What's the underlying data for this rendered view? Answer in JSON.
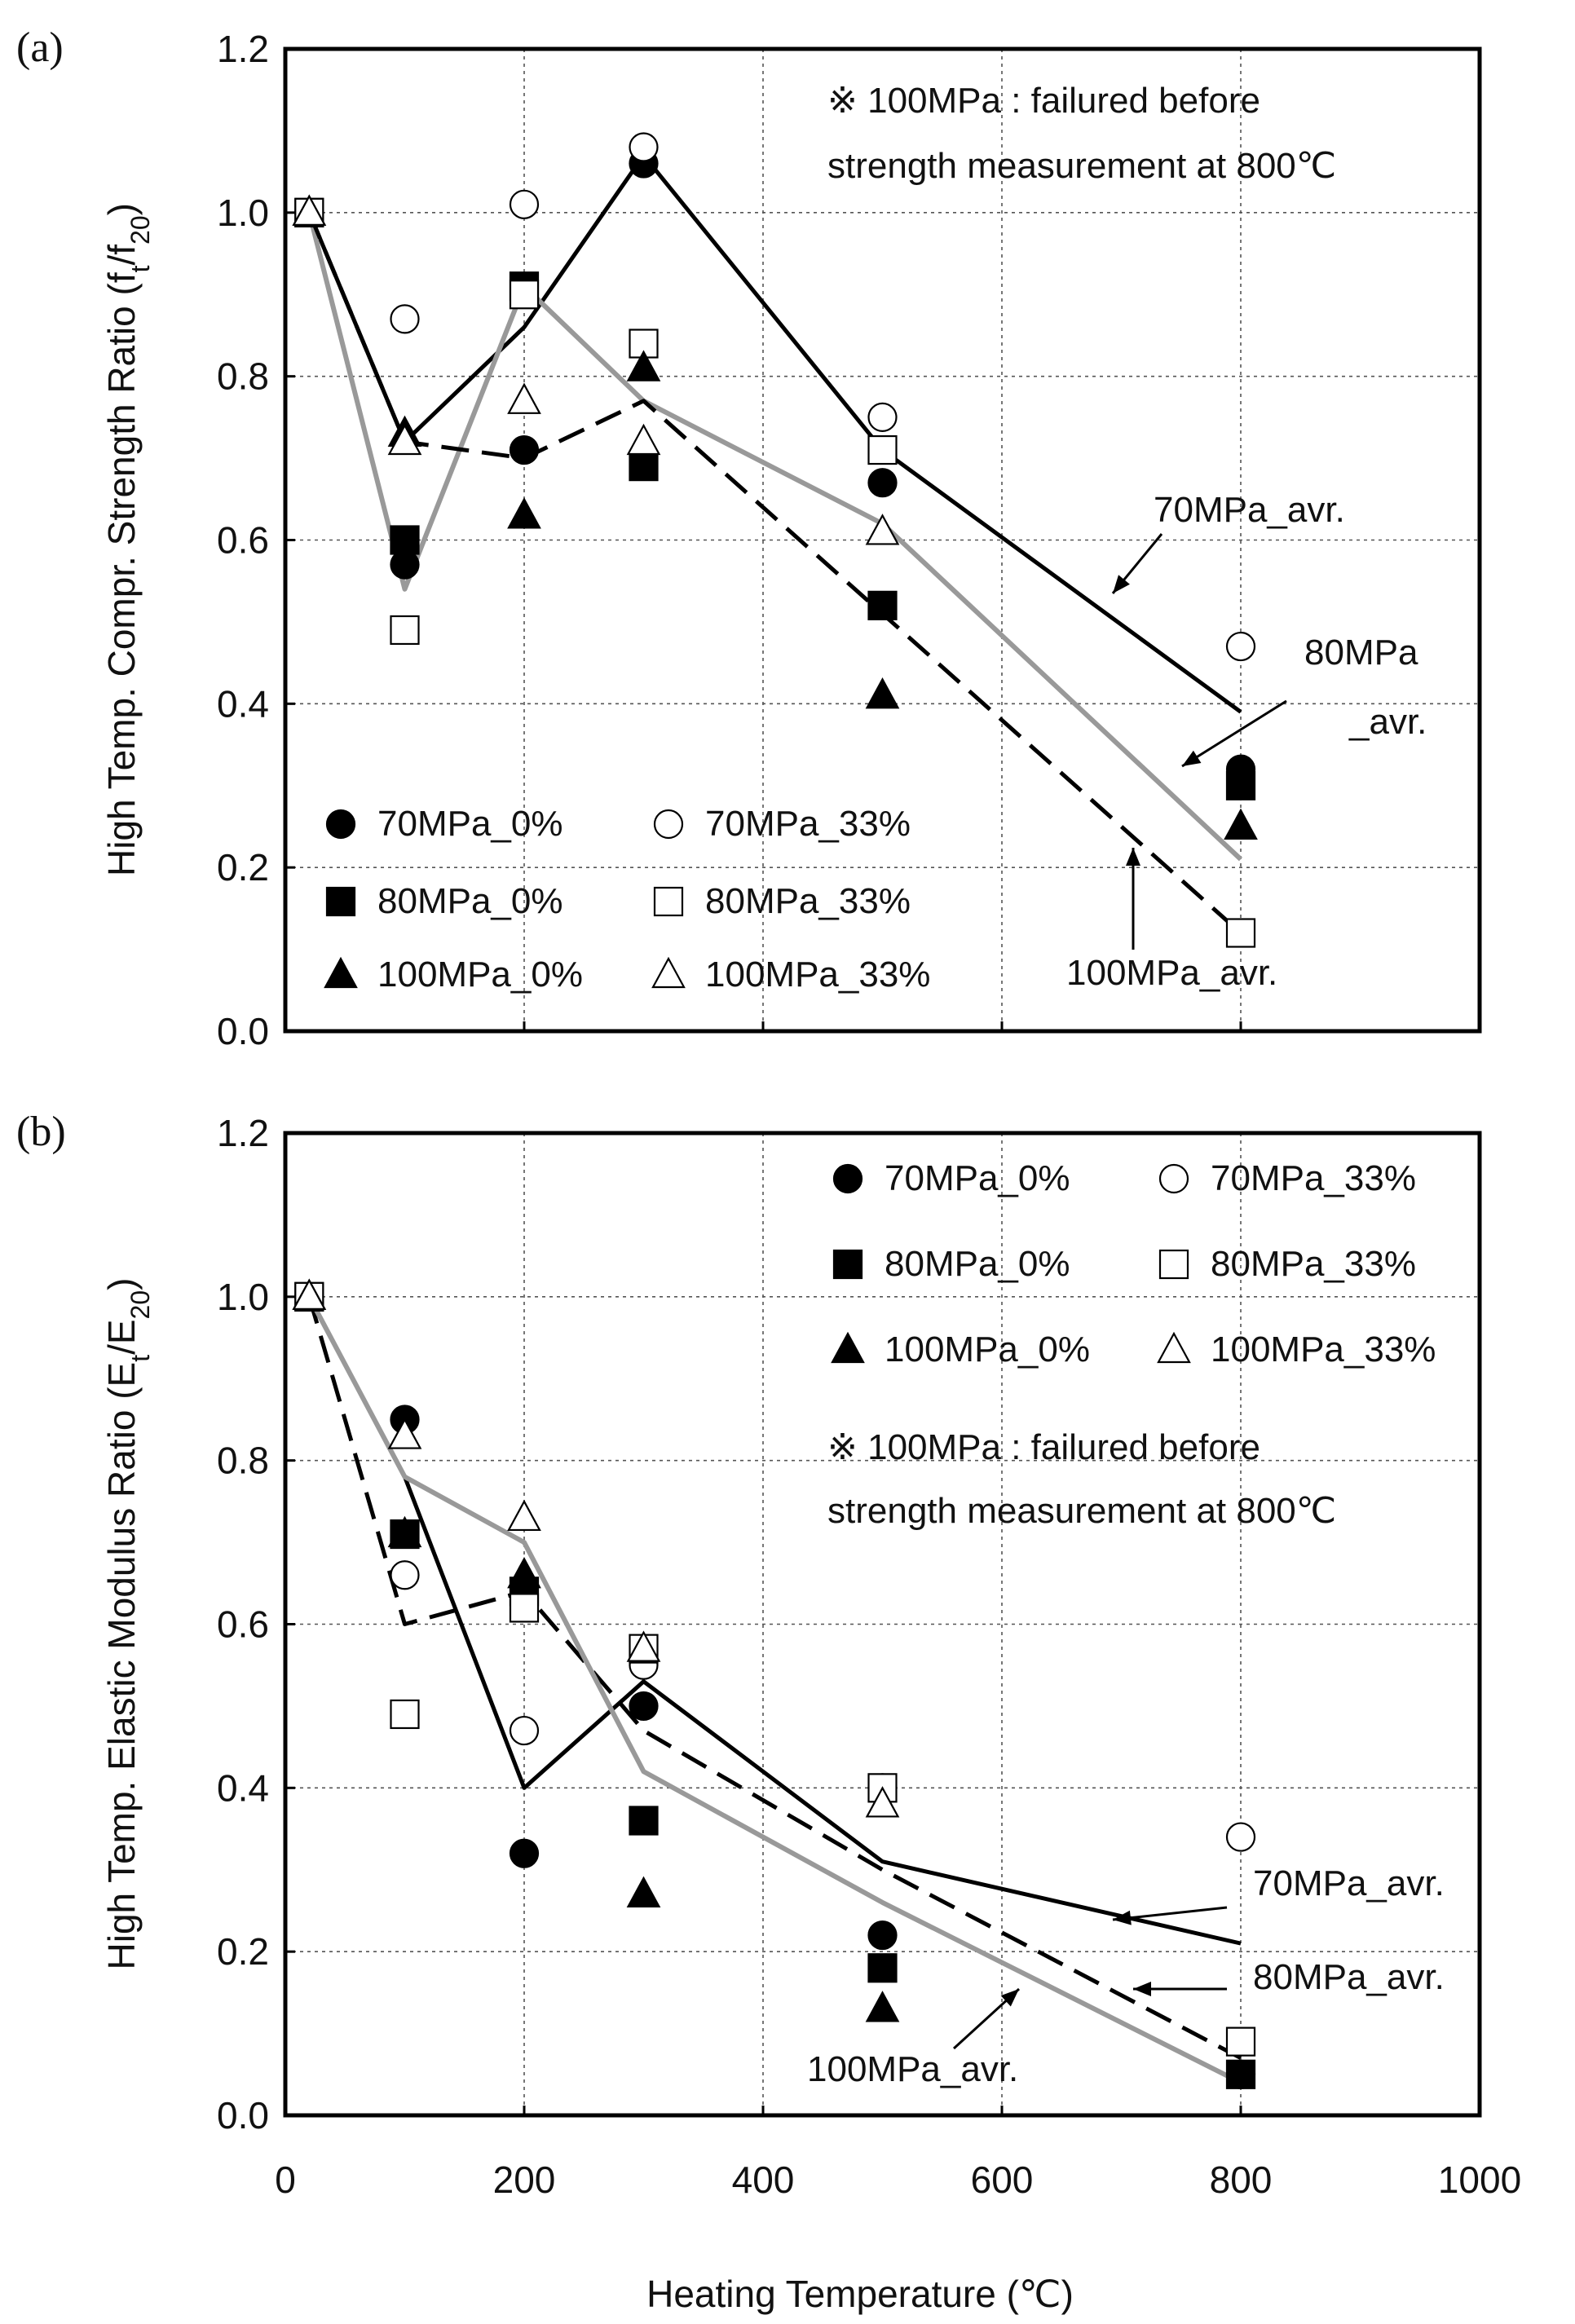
{
  "figure": {
    "x_axis_title": "Heating Temperature (℃)"
  },
  "chart_data": [
    {
      "type": "scatter",
      "panel_label": "(a)",
      "ylabel_main": "High Temp. Compr. Strength Ratio (f",
      "ylabel_sub1": "t",
      "ylabel_mid": "/f",
      "ylabel_sub2": "20",
      "ylabel_end": ")",
      "xlabel": "Heating Temperature (℃)",
      "xlim": [
        0,
        1000
      ],
      "ylim": [
        0,
        1.2
      ],
      "x_ticks": [
        "0",
        "200",
        "400",
        "600",
        "800",
        "1000"
      ],
      "y_ticks": [
        "0.0",
        "0.2",
        "0.4",
        "0.6",
        "0.8",
        "1.0",
        "1.2"
      ],
      "note_line1": "※ 100MPa : failured before",
      "note_line2": "strength measurement  at 800℃",
      "legend": [
        "70MPa_0%",
        "70MPa_33%",
        "80MPa_0%",
        "80MPa_33%",
        "100MPa_0%",
        "100MPa_33%"
      ],
      "series": [
        {
          "name": "70MPa_0%",
          "marker": "circle",
          "filled": true,
          "x": [
            20,
            100,
            200,
            300,
            500,
            800
          ],
          "y": [
            1.0,
            0.57,
            0.71,
            1.06,
            0.67,
            0.32
          ]
        },
        {
          "name": "70MPa_33%",
          "marker": "circle",
          "filled": false,
          "x": [
            20,
            100,
            200,
            300,
            500,
            800
          ],
          "y": [
            1.0,
            0.87,
            1.01,
            1.08,
            0.75,
            0.47
          ]
        },
        {
          "name": "80MPa_0%",
          "marker": "square",
          "filled": true,
          "x": [
            20,
            100,
            200,
            300,
            500,
            800
          ],
          "y": [
            1.0,
            0.6,
            0.91,
            0.69,
            0.52,
            0.3
          ]
        },
        {
          "name": "80MPa_33%",
          "marker": "square",
          "filled": false,
          "x": [
            20,
            100,
            200,
            300,
            500,
            800
          ],
          "y": [
            1.0,
            0.49,
            0.9,
            0.84,
            0.71,
            0.12
          ]
        },
        {
          "name": "100MPa_0%",
          "marker": "triangle",
          "filled": true,
          "x": [
            20,
            100,
            200,
            300,
            500,
            800
          ],
          "y": [
            1.0,
            0.73,
            0.63,
            0.81,
            0.41,
            0.25
          ]
        },
        {
          "name": "100MPa_33%",
          "marker": "triangle",
          "filled": false,
          "x": [
            20,
            100,
            200,
            300,
            500
          ],
          "y": [
            1.0,
            0.72,
            0.77,
            0.72,
            0.61
          ]
        }
      ],
      "avg_lines": [
        {
          "name": "70MPa_avr.",
          "style": "solid-black",
          "x": [
            20,
            100,
            200,
            300,
            500,
            800
          ],
          "y": [
            1.0,
            0.72,
            0.86,
            1.07,
            0.71,
            0.39
          ]
        },
        {
          "name": "80MPa_avr.",
          "style": "solid-gray",
          "x": [
            20,
            100,
            200,
            300,
            500,
            800
          ],
          "y": [
            1.0,
            0.54,
            0.91,
            0.77,
            0.62,
            0.21
          ]
        },
        {
          "name": "100MPa_avr.",
          "style": "dashed-black",
          "x": [
            20,
            100,
            200,
            300,
            500,
            800
          ],
          "y": [
            1.0,
            0.72,
            0.7,
            0.77,
            0.51,
            0.12
          ]
        }
      ],
      "line_labels": [
        {
          "text": "70MPa_avr."
        },
        {
          "text": "80MPa"
        },
        {
          "text": "_avr."
        },
        {
          "text": "100MPa_avr."
        }
      ]
    },
    {
      "type": "scatter",
      "panel_label": "(b)",
      "ylabel_main": "High Temp. Elastic Modulus Ratio (E",
      "ylabel_sub1": "t",
      "ylabel_mid": "/E",
      "ylabel_sub2": "20",
      "ylabel_end": ")",
      "xlabel": "Heating Temperature (℃)",
      "xlim": [
        0,
        1000
      ],
      "ylim": [
        0,
        1.2
      ],
      "x_ticks": [
        "0",
        "200",
        "400",
        "600",
        "800",
        "1000"
      ],
      "y_ticks": [
        "0.0",
        "0.2",
        "0.4",
        "0.6",
        "0.8",
        "1.0",
        "1.2"
      ],
      "note_line1": "※ 100MPa : failured before",
      "note_line2": "strength measurement  at 800℃",
      "legend": [
        "70MPa_0%",
        "70MPa_33%",
        "80MPa_0%",
        "80MPa_33%",
        "100MPa_0%",
        "100MPa_33%"
      ],
      "series": [
        {
          "name": "70MPa_0%",
          "marker": "circle",
          "filled": true,
          "x": [
            20,
            100,
            200,
            300,
            500,
            800
          ],
          "y": [
            1.0,
            0.85,
            0.32,
            0.5,
            0.22,
            0.05
          ]
        },
        {
          "name": "70MPa_33%",
          "marker": "circle",
          "filled": false,
          "x": [
            20,
            100,
            200,
            300,
            500,
            800
          ],
          "y": [
            1.0,
            0.66,
            0.47,
            0.55,
            0.4,
            0.34
          ]
        },
        {
          "name": "80MPa_0%",
          "marker": "square",
          "filled": true,
          "x": [
            20,
            100,
            200,
            300,
            500,
            800
          ],
          "y": [
            1.0,
            0.71,
            0.64,
            0.36,
            0.18,
            0.05
          ]
        },
        {
          "name": "80MPa_33%",
          "marker": "square",
          "filled": false,
          "x": [
            20,
            100,
            200,
            300,
            500,
            800
          ],
          "y": [
            1.0,
            0.49,
            0.62,
            0.57,
            0.4,
            0.09
          ]
        },
        {
          "name": "100MPa_0%",
          "marker": "triangle",
          "filled": true,
          "x": [
            20,
            100,
            200,
            300,
            500
          ],
          "y": [
            1.0,
            0.71,
            0.66,
            0.27,
            0.13
          ]
        },
        {
          "name": "100MPa_33%",
          "marker": "triangle",
          "filled": false,
          "x": [
            20,
            100,
            200,
            300,
            500
          ],
          "y": [
            1.0,
            0.83,
            0.73,
            0.57,
            0.38
          ]
        }
      ],
      "avg_lines": [
        {
          "name": "70MPa_avr.",
          "style": "solid-black",
          "x": [
            20,
            100,
            200,
            300,
            500,
            800
          ],
          "y": [
            1.0,
            0.78,
            0.4,
            0.53,
            0.31,
            0.21
          ]
        },
        {
          "name": "80MPa_avr.",
          "style": "dashed-black",
          "x": [
            20,
            100,
            200,
            300,
            500,
            800
          ],
          "y": [
            1.0,
            0.6,
            0.64,
            0.47,
            0.3,
            0.07
          ]
        },
        {
          "name": "100MPa_avr.",
          "style": "solid-gray",
          "x": [
            20,
            100,
            200,
            300,
            500,
            800
          ],
          "y": [
            1.0,
            0.78,
            0.7,
            0.42,
            0.26,
            0.04
          ]
        }
      ],
      "line_labels": [
        {
          "text": "70MPa_avr."
        },
        {
          "text": "80MPa_avr."
        },
        {
          "text": "100MPa_avr."
        }
      ]
    }
  ]
}
